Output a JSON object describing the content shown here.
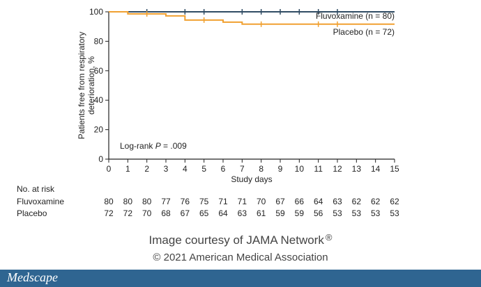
{
  "chart_data": {
    "type": "line",
    "step": true,
    "title": "",
    "xlabel": "Study days",
    "ylabel_lines": [
      "Patients free from respiratory",
      "deterioration, %"
    ],
    "xlim": [
      0,
      15
    ],
    "ylim": [
      0,
      100
    ],
    "x_ticks": [
      0,
      1,
      2,
      3,
      4,
      5,
      6,
      7,
      8,
      9,
      10,
      11,
      12,
      13,
      14,
      15
    ],
    "y_ticks": [
      0,
      20,
      40,
      60,
      80,
      100
    ],
    "grid": false,
    "annotation_prefix": "Log-rank ",
    "annotation_italic": "P",
    "annotation_suffix": " = .009",
    "series": [
      {
        "name": "Fluvoxamine (n = 80)",
        "color": "#2f4b63",
        "steps": [
          [
            0,
            100
          ],
          [
            15,
            100
          ]
        ],
        "censor_x": [
          2,
          4,
          5,
          7,
          8,
          9,
          10,
          11,
          12
        ]
      },
      {
        "name": "Placebo (n = 72)",
        "color": "#f0a030",
        "steps": [
          [
            0,
            100
          ],
          [
            1,
            98.6
          ],
          [
            3,
            97.2
          ],
          [
            4,
            94.4
          ],
          [
            6,
            93.0
          ],
          [
            7,
            91.6
          ],
          [
            15,
            91.6
          ]
        ],
        "censor_x": [
          2,
          5,
          8,
          11,
          12
        ]
      }
    ],
    "risk_table": {
      "title": "No. at risk",
      "rows": [
        {
          "label": "Fluvoxamine",
          "values": [
            80,
            80,
            80,
            77,
            76,
            75,
            71,
            71,
            70,
            67,
            66,
            64,
            63,
            62,
            62,
            62
          ]
        },
        {
          "label": "Placebo",
          "values": [
            72,
            72,
            70,
            68,
            67,
            65,
            64,
            63,
            61,
            59,
            59,
            56,
            53,
            53,
            53,
            53
          ]
        }
      ]
    }
  },
  "credit": {
    "line1": "Image courtesy of JAMA Network",
    "line1_mark": "®",
    "line2": "© 2021 American Medical Association"
  },
  "footer": {
    "brand": "Medscape",
    "color": "#2f6591"
  }
}
